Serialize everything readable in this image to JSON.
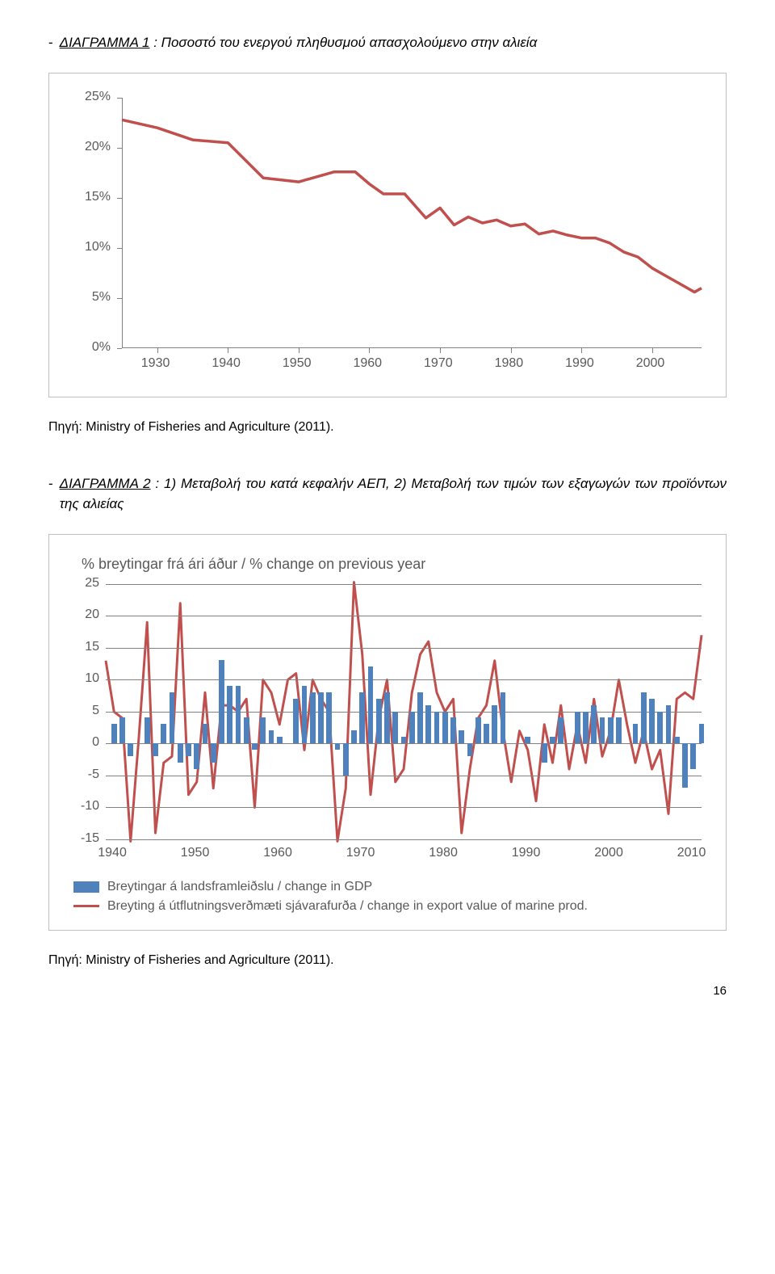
{
  "chart1_caption": {
    "dash": "-",
    "label": "ΔΙΑΓΡΑΜΜΑ 1",
    "sep": " : ",
    "desc": "Ποσοστό του ενεργού πληθυσμού απασχολούμενο στην αλιεία"
  },
  "source1": "Πηγή:  Ministry of Fisheries and Agriculture (2011).",
  "chart2_caption": {
    "dash": "-",
    "label": "ΔΙΑΓΡΑΜΜΑ 2",
    "sep": " :   ",
    "desc": "1) Μεταβολή του κατά κεφαλήν ΑΕΠ,   2)  Μεταβολή των τιμών των εξαγωγών των προϊόντων της αλιείας"
  },
  "source2": "Πηγή:  Ministry of Fisheries and Agriculture (2011).",
  "pagenum": "16",
  "chart1": {
    "type": "line",
    "line_color": "#c0504d",
    "line_width": 3.5,
    "axis_color": "#808080",
    "tick_label_color": "#595959",
    "background_color": "#ffffff",
    "border_color": "#bfbfbf",
    "ylim": [
      0,
      25
    ],
    "ylabels": [
      "0%",
      "5%",
      "10%",
      "15%",
      "20%",
      "25%"
    ],
    "ytick_values": [
      0,
      5,
      10,
      15,
      20,
      25
    ],
    "xlim": [
      1925,
      2007
    ],
    "xlabels": [
      "1930",
      "1940",
      "1950",
      "1960",
      "1970",
      "1980",
      "1990",
      "2000"
    ],
    "xtick_values": [
      1930,
      1940,
      1950,
      1960,
      1970,
      1980,
      1990,
      2000
    ],
    "points": [
      [
        1925,
        22.8
      ],
      [
        1930,
        22.0
      ],
      [
        1935,
        20.8
      ],
      [
        1940,
        20.5
      ],
      [
        1945,
        17.0
      ],
      [
        1950,
        16.6
      ],
      [
        1955,
        17.6
      ],
      [
        1958,
        17.6
      ],
      [
        1960,
        16.4
      ],
      [
        1962,
        15.4
      ],
      [
        1965,
        15.4
      ],
      [
        1968,
        13.0
      ],
      [
        1970,
        14.0
      ],
      [
        1972,
        12.3
      ],
      [
        1974,
        13.1
      ],
      [
        1976,
        12.5
      ],
      [
        1978,
        12.8
      ],
      [
        1980,
        12.2
      ],
      [
        1982,
        12.4
      ],
      [
        1984,
        11.4
      ],
      [
        1986,
        11.7
      ],
      [
        1988,
        11.3
      ],
      [
        1990,
        11.0
      ],
      [
        1992,
        11.0
      ],
      [
        1994,
        10.5
      ],
      [
        1996,
        9.6
      ],
      [
        1998,
        9.1
      ],
      [
        2000,
        8.0
      ],
      [
        2002,
        7.2
      ],
      [
        2004,
        6.4
      ],
      [
        2006,
        5.6
      ],
      [
        2007,
        6.0
      ]
    ]
  },
  "chart2": {
    "type": "bar+line",
    "title": "% breytingar frá ári áður / % change on previous year",
    "bar_color": "#4f81bd",
    "line_color": "#c0504d",
    "line_width": 3,
    "grid_color": "#808080",
    "tick_label_color": "#595959",
    "background_color": "#ffffff",
    "border_color": "#bfbfbf",
    "ylim": [
      -15,
      25
    ],
    "ylabels": [
      "-15",
      "-10",
      "-5",
      "0",
      "5",
      "10",
      "15",
      "20",
      "25"
    ],
    "ytick_values": [
      -15,
      -10,
      -5,
      0,
      5,
      10,
      15,
      20,
      25
    ],
    "xlim": [
      1939,
      2011
    ],
    "xlabels": [
      "1940",
      "1950",
      "1960",
      "1970",
      "1980",
      "1990",
      "2000",
      "2010"
    ],
    "xtick_values": [
      1940,
      1950,
      1960,
      1970,
      1980,
      1990,
      2000,
      2010
    ],
    "legend": [
      {
        "type": "bar",
        "label": "Breytingar á landsframleiðslu / change in GDP"
      },
      {
        "type": "line",
        "label": "Breyting á útflutningsverðmæti sjávarafurða / change in export value of marine prod."
      }
    ],
    "bars": [
      [
        1940,
        3
      ],
      [
        1941,
        4
      ],
      [
        1942,
        -2
      ],
      [
        1943,
        0
      ],
      [
        1944,
        4
      ],
      [
        1945,
        -2
      ],
      [
        1946,
        3
      ],
      [
        1947,
        8
      ],
      [
        1948,
        -3
      ],
      [
        1949,
        -2
      ],
      [
        1950,
        -4
      ],
      [
        1951,
        3
      ],
      [
        1952,
        -3
      ],
      [
        1953,
        13
      ],
      [
        1954,
        9
      ],
      [
        1955,
        9
      ],
      [
        1956,
        4
      ],
      [
        1957,
        -1
      ],
      [
        1958,
        4
      ],
      [
        1959,
        2
      ],
      [
        1960,
        1
      ],
      [
        1961,
        0
      ],
      [
        1962,
        7
      ],
      [
        1963,
        9
      ],
      [
        1964,
        8
      ],
      [
        1965,
        8
      ],
      [
        1966,
        8
      ],
      [
        1967,
        -1
      ],
      [
        1968,
        -5
      ],
      [
        1969,
        2
      ],
      [
        1970,
        8
      ],
      [
        1971,
        12
      ],
      [
        1972,
        7
      ],
      [
        1973,
        8
      ],
      [
        1974,
        5
      ],
      [
        1975,
        1
      ],
      [
        1976,
        5
      ],
      [
        1977,
        8
      ],
      [
        1978,
        6
      ],
      [
        1979,
        5
      ],
      [
        1980,
        5
      ],
      [
        1981,
        4
      ],
      [
        1982,
        2
      ],
      [
        1983,
        -2
      ],
      [
        1984,
        4
      ],
      [
        1985,
        3
      ],
      [
        1986,
        6
      ],
      [
        1987,
        8
      ],
      [
        1988,
        0
      ],
      [
        1989,
        0
      ],
      [
        1990,
        1
      ],
      [
        1991,
        0
      ],
      [
        1992,
        -3
      ],
      [
        1993,
        1
      ],
      [
        1994,
        4
      ],
      [
        1995,
        0
      ],
      [
        1996,
        5
      ],
      [
        1997,
        5
      ],
      [
        1998,
        6
      ],
      [
        1999,
        4
      ],
      [
        2000,
        4
      ],
      [
        2001,
        4
      ],
      [
        2002,
        0
      ],
      [
        2003,
        3
      ],
      [
        2004,
        8
      ],
      [
        2005,
        7
      ],
      [
        2006,
        5
      ],
      [
        2007,
        6
      ],
      [
        2008,
        1
      ],
      [
        2009,
        -7
      ],
      [
        2010,
        -4
      ],
      [
        2011,
        3
      ]
    ],
    "line_points": [
      [
        1939,
        13
      ],
      [
        1940,
        5
      ],
      [
        1941,
        4
      ],
      [
        1942,
        -18
      ],
      [
        1943,
        1
      ],
      [
        1944,
        19
      ],
      [
        1945,
        -14
      ],
      [
        1946,
        -3
      ],
      [
        1947,
        -2
      ],
      [
        1948,
        22
      ],
      [
        1949,
        -8
      ],
      [
        1950,
        -6
      ],
      [
        1951,
        8
      ],
      [
        1952,
        -7
      ],
      [
        1953,
        6
      ],
      [
        1954,
        6
      ],
      [
        1955,
        5
      ],
      [
        1956,
        7
      ],
      [
        1957,
        -10
      ],
      [
        1958,
        10
      ],
      [
        1959,
        8
      ],
      [
        1960,
        3
      ],
      [
        1961,
        10
      ],
      [
        1962,
        11
      ],
      [
        1963,
        -1
      ],
      [
        1964,
        10
      ],
      [
        1965,
        7
      ],
      [
        1966,
        5
      ],
      [
        1967,
        -18
      ],
      [
        1968,
        -7
      ],
      [
        1969,
        28
      ],
      [
        1970,
        14
      ],
      [
        1971,
        -8
      ],
      [
        1972,
        4
      ],
      [
        1973,
        10
      ],
      [
        1974,
        -6
      ],
      [
        1975,
        -4
      ],
      [
        1976,
        8
      ],
      [
        1977,
        14
      ],
      [
        1978,
        16
      ],
      [
        1979,
        8
      ],
      [
        1980,
        5
      ],
      [
        1981,
        7
      ],
      [
        1982,
        -14
      ],
      [
        1983,
        -4
      ],
      [
        1984,
        4
      ],
      [
        1985,
        6
      ],
      [
        1986,
        13
      ],
      [
        1987,
        2
      ],
      [
        1988,
        -6
      ],
      [
        1989,
        2
      ],
      [
        1990,
        -1
      ],
      [
        1991,
        -9
      ],
      [
        1992,
        3
      ],
      [
        1993,
        -3
      ],
      [
        1994,
        6
      ],
      [
        1995,
        -4
      ],
      [
        1996,
        3
      ],
      [
        1997,
        -3
      ],
      [
        1998,
        7
      ],
      [
        1999,
        -2
      ],
      [
        2000,
        2
      ],
      [
        2001,
        10
      ],
      [
        2002,
        3
      ],
      [
        2003,
        -3
      ],
      [
        2004,
        2
      ],
      [
        2005,
        -4
      ],
      [
        2006,
        -1
      ],
      [
        2007,
        -11
      ],
      [
        2008,
        7
      ],
      [
        2009,
        8
      ],
      [
        2010,
        7
      ],
      [
        2011,
        17
      ]
    ]
  }
}
